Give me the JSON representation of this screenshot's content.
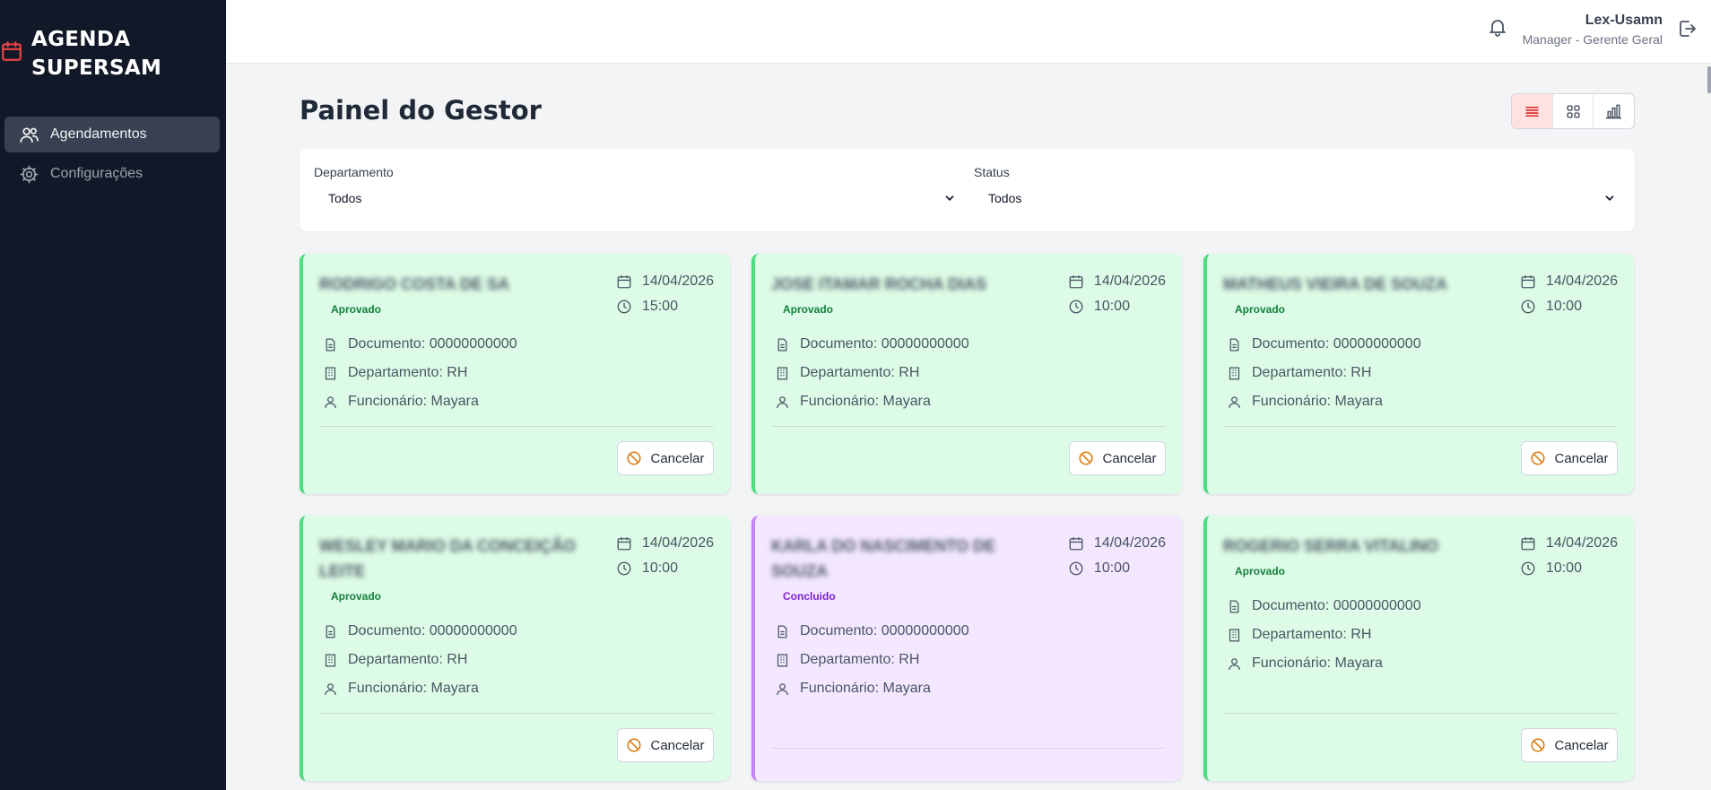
{
  "brand": {
    "title_line1": "AGENDA",
    "title_line2": "SUPERSAM",
    "accent": "#ef4444"
  },
  "sidebar": {
    "items": [
      {
        "label": "Agendamentos",
        "icon": "users-icon",
        "active": true
      },
      {
        "label": "Configurações",
        "icon": "gear-icon",
        "active": false
      }
    ]
  },
  "header": {
    "user_name": "Lex-Usamn",
    "user_role": "Manager - Gerente Geral"
  },
  "main": {
    "title": "Painel do Gestor",
    "view_modes": [
      "list-view-icon",
      "grid-view-icon",
      "chart-view-icon"
    ],
    "filters": {
      "department": {
        "label": "Departamento",
        "value": "Todos"
      },
      "status": {
        "label": "Status",
        "value": "Todos"
      }
    }
  },
  "cards": [
    {
      "name": "RODRIGO COSTA DE SA",
      "status": "Aprovado",
      "date": "14/04/2026",
      "time": "15:00",
      "document": "Documento: 00000000000",
      "department": "Departamento: RH",
      "employee": "Funcionário: Mayara",
      "cancel_label": "Cancelar"
    },
    {
      "name": "JOSE ITAMAR ROCHA DIAS",
      "status": "Aprovado",
      "date": "14/04/2026",
      "time": "10:00",
      "document": "Documento: 00000000000",
      "department": "Departamento: RH",
      "employee": "Funcionário: Mayara",
      "cancel_label": "Cancelar"
    },
    {
      "name": "MATHEUS VIEIRA DE SOUZA",
      "status": "Aprovado",
      "date": "14/04/2026",
      "time": "10:00",
      "document": "Documento: 00000000000",
      "department": "Departamento: RH",
      "employee": "Funcionário: Mayara",
      "cancel_label": "Cancelar"
    },
    {
      "name": "WESLEY MARIO DA CONCEIÇÃO LEITE",
      "status": "Aprovado",
      "date": "14/04/2026",
      "time": "10:00",
      "document": "Documento: 00000000000",
      "department": "Departamento: RH",
      "employee": "Funcionário: Mayara",
      "cancel_label": "Cancelar"
    },
    {
      "name": "KARLA DO NASCIMENTO DE SOUZA",
      "status": "Concluido",
      "date": "14/04/2026",
      "time": "10:00",
      "document": "Documento: 00000000000",
      "department": "Departamento: RH",
      "employee": "Funcionário: Mayara",
      "cancel_label": ""
    },
    {
      "name": "ROGERIO SERRA VITALINO",
      "status": "Aprovado",
      "date": "14/04/2026",
      "time": "10:00",
      "document": "Documento: 00000000000",
      "department": "Departamento: RH",
      "employee": "Funcionário: Mayara",
      "cancel_label": "Cancelar"
    }
  ]
}
